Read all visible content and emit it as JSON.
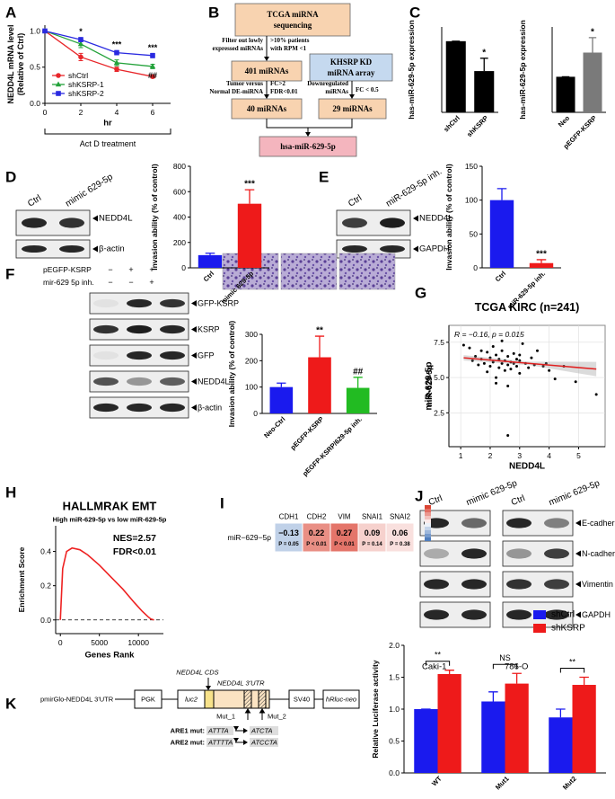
{
  "panel_labels": [
    "A",
    "B",
    "C",
    "D",
    "E",
    "F",
    "G",
    "H",
    "I",
    "J",
    "K"
  ],
  "diagram_b": {
    "nodes": [
      [
        "TCGA miRNA",
        "sequencing"
      ],
      [
        "401 miRNAs"
      ],
      [
        "40 miRNAs"
      ],
      [
        "KHSRP KD",
        "miRNA array"
      ],
      [
        "29 miRNAs"
      ],
      [
        "hsa-miR-629-5p"
      ]
    ],
    "edge_labels": [
      [
        "Filter out lowly",
        "expressed miRNAs"
      ],
      [
        ">10% patients",
        "with RPM <1"
      ],
      [
        "Tumor versus",
        "Normal DE-miRNA"
      ],
      [
        "FC>2",
        "FDR<0.01"
      ],
      [
        "Downregulated",
        "miRNAs"
      ],
      [
        "FC < 0.5"
      ]
    ]
  },
  "blots": {
    "D": {
      "lanes": [
        "Ctrl",
        "mimic 629-5p"
      ],
      "bands": [
        "NEDD4L",
        "β-actin"
      ]
    },
    "E": {
      "lanes": [
        "Ctrl",
        "miR-629-5p inh."
      ],
      "bands": [
        "NEDD4L",
        "GAPDH"
      ]
    },
    "F": {
      "rows": [
        {
          "label": "pEGFP-KSRP",
          "marks": [
            "−",
            "+",
            "+"
          ]
        },
        {
          "label": "mir-629 5p inh.",
          "marks": [
            "−",
            "−",
            "+"
          ]
        }
      ],
      "bands": [
        "GFP-KSRP",
        "KSRP",
        "GFP",
        "NEDD4L",
        "β-actin"
      ]
    },
    "J": {
      "lanes": [
        "Ctrl",
        "mimic 629-5p",
        "Ctrl",
        "mimic 629-5p"
      ],
      "bands": [
        "E-cadherin",
        "N-cadherin",
        "Vimentin",
        "GAPDH"
      ],
      "cell_lines": [
        "Caki-1",
        "786-O"
      ]
    }
  },
  "construct_k": {
    "vector": "pmirGlo-NEDD4L 3'UTR",
    "boxes": [
      "PGK",
      "luc2",
      "SV40",
      "hRluc-neo"
    ],
    "cds": "NEDD4L CDS",
    "utr": "NEDD4L 3'UTR",
    "muts": [
      "Mut_1",
      "Mut_2"
    ],
    "are": [
      {
        "label": "ARE1 mut:",
        "from": "ATTTA",
        "to": "ATCTA"
      },
      {
        "label": "ARE2 mut:",
        "from": "ATTTTA",
        "to": "ATCCTA"
      }
    ]
  },
  "chart_data": [
    {
      "type": "line",
      "ylabel": [
        "NEDD4L mRNA level",
        "(Relative of Ctrl)"
      ],
      "xlabel": "hr",
      "bracket_label": "Act D treatment",
      "x": [
        0,
        2,
        4,
        6
      ],
      "xlim": [
        0,
        7
      ],
      "xticks": [
        0,
        2,
        4,
        6
      ],
      "ylim": [
        0,
        1.08
      ],
      "yticks": [
        {
          "value": 0,
          "label": "0.0"
        },
        0.5,
        {
          "value": 1,
          "label": "1.0"
        }
      ],
      "series": [
        {
          "name": "shCtrl",
          "color": "#e8262a",
          "marker": "circle",
          "values": [
            1,
            0.64,
            0.47,
            0.37
          ],
          "errors": [
            0.02,
            0.05,
            0.03,
            0.02
          ]
        },
        {
          "name": "shKSRP-1",
          "color": "#23a23a",
          "marker": "triangle",
          "values": [
            1,
            0.82,
            0.56,
            0.51
          ],
          "errors": [
            0.02,
            0.05,
            0.04,
            0.03
          ]
        },
        {
          "name": "shKSRP-2",
          "color": "#2a2ae0",
          "marker": "square",
          "values": [
            1,
            0.88,
            0.7,
            0.66
          ],
          "errors": [
            0.02,
            0.03,
            0.03,
            0.03
          ]
        }
      ],
      "legend": "lower left",
      "annotations": [
        {
          "series": 2,
          "index": 1,
          "text": "*",
          "color": "#2a2ae0"
        },
        {
          "series": 2,
          "index": 2,
          "text": "***",
          "color": "#2a2ae0"
        },
        {
          "series": 2,
          "index": 3,
          "text": "***",
          "color": "#2a2ae0"
        },
        {
          "series": 1,
          "index": 3,
          "text": "##",
          "color": "#23a23a"
        }
      ]
    },
    {
      "type": "bar",
      "ylabel": "has-miR-629-5p expression",
      "categories": [
        "shCtrl",
        "shKSRP"
      ],
      "values": [
        1,
        0.58
      ],
      "errors": [
        0,
        0.18
      ],
      "colors": [
        "#000000",
        "#000000"
      ],
      "ylim": [
        0,
        1.2
      ],
      "stars": [
        null,
        "*"
      ]
    },
    {
      "type": "bar",
      "ylabel": "has-miR-629-5p expression",
      "categories": [
        "Neo",
        "pEGFP-KSRP"
      ],
      "values": [
        1,
        1.68
      ],
      "errors": [
        0,
        0.42
      ],
      "colors": [
        "#000000",
        "#7a7a7a"
      ],
      "ylim": [
        0,
        2.4
      ],
      "stars": [
        null,
        "*"
      ]
    },
    {
      "type": "bar",
      "ylabel": "Invasion ability (% of control)",
      "categories": [
        "Ctrl",
        "mimic 629-5p"
      ],
      "values": [
        100,
        505
      ],
      "errors": [
        15,
        110
      ],
      "colors": [
        "#1a1aee",
        "#ee1a1a"
      ],
      "ylim": [
        0,
        800
      ],
      "yticks": [
        0,
        200,
        400,
        600,
        800
      ],
      "stars": [
        null,
        "***"
      ]
    },
    {
      "type": "bar",
      "ylabel": "Invasion ability (% of control)",
      "categories": [
        "Ctrl",
        "miR-629-5p inh."
      ],
      "values": [
        100,
        7
      ],
      "errors": [
        17,
        5
      ],
      "colors": [
        "#1a1aee",
        "#ee1a1a"
      ],
      "ylim": [
        0,
        150
      ],
      "yticks": [
        0,
        50,
        100,
        150
      ],
      "stars": [
        null,
        "***"
      ]
    },
    {
      "type": "bar",
      "ylabel": "Invasion ability (% of control)",
      "categories": [
        "Neo-Ctrl",
        "pEGFP-KSRP",
        "pEGFP-KSRP/629-5p inh."
      ],
      "values": [
        100,
        213,
        97
      ],
      "errors": [
        15,
        80,
        40
      ],
      "colors": [
        "#1a1aee",
        "#ee1a1a",
        "#22bb22"
      ],
      "ylim": [
        0,
        300
      ],
      "yticks": [
        0,
        100,
        200,
        300
      ],
      "stars": [
        null,
        "**",
        "##"
      ]
    },
    {
      "type": "scatter",
      "title": "TCGA KIRC (n=241)",
      "stat": "R = −0.16, p = 0.015",
      "xlabel": "NEDD4L",
      "ylabel": "miR-629-5p",
      "x": [
        1.1,
        1.3,
        1.4,
        1.5,
        1.6,
        1.7,
        1.8,
        1.9,
        1.9,
        2.0,
        2.0,
        2.1,
        2.1,
        2.2,
        2.2,
        2.3,
        2.3,
        2.4,
        2.4,
        2.5,
        2.5,
        2.6,
        2.6,
        2.6,
        2.7,
        2.7,
        2.8,
        2.8,
        2.9,
        2.9,
        3.0,
        3.0,
        3.1,
        3.2,
        3.3,
        3.4,
        3.5,
        3.6,
        3.8,
        3.9,
        4.0,
        4.2,
        4.5,
        4.9,
        5.6,
        2.6,
        2.2,
        2.4,
        1.7,
        3.0
      ],
      "values": [
        7.3,
        7.1,
        6.2,
        6.5,
        5.9,
        6.3,
        6.0,
        6.8,
        5.4,
        6.4,
        5.8,
        7.2,
        6.1,
        6.6,
        5.0,
        6.3,
        5.7,
        6.9,
        6.0,
        6.2,
        5.5,
        6.5,
        5.9,
        4.4,
        6.1,
        5.6,
        6.7,
        6.0,
        5.8,
        6.3,
        6.2,
        5.3,
        7.4,
        6.0,
        5.7,
        6.4,
        5.9,
        6.9,
        5.8,
        6.0,
        5.5,
        4.9,
        5.8,
        4.7,
        3.8,
        0.9,
        4.6,
        7.6,
        6.9,
        6.6
      ],
      "color": "#000000",
      "xlim": [
        0.6,
        5.9
      ],
      "xticks": [
        1,
        2,
        3,
        4,
        5
      ],
      "ylim": [
        0.1,
        8.7
      ],
      "yticks": [
        2.5,
        {
          "value": 5,
          "label": "5.0"
        },
        7.5
      ],
      "grid": true,
      "trend": {
        "x": [
          1.1,
          5.6
        ],
        "y": [
          6.4,
          5.6
        ],
        "color": "#e02020"
      }
    },
    {
      "type": "line",
      "title": "HALLMRAK EMT",
      "subtitle": "High miR-629-5p vs low miR-629-5p",
      "notes": [
        "NES=2.57",
        "FDR<0.01"
      ],
      "xlabel": "Genes Rank",
      "ylabel": "Enrichment Score",
      "markers": false,
      "zero_line": true,
      "x": [
        0,
        300,
        800,
        1500,
        2500,
        3500,
        5000,
        6500,
        8000,
        9500,
        10500,
        11200,
        11600,
        12000
      ],
      "xlim": [
        -600,
        13200
      ],
      "xticks": [
        0,
        5000,
        10000
      ],
      "ylim": [
        -0.08,
        0.55
      ],
      "yticks": [
        {
          "value": 0,
          "label": "0.0"
        },
        0.2,
        0.4
      ],
      "series": [
        {
          "color": "#ee2222",
          "values": [
            0,
            0.3,
            0.4,
            0.42,
            0.41,
            0.38,
            0.32,
            0.25,
            0.18,
            0.1,
            0.05,
            0.02,
            0.005,
            0
          ]
        }
      ]
    },
    {
      "type": "heatmap",
      "rows": [
        "miR−629−5p"
      ],
      "columns": [
        "CDH1",
        "CDH2",
        "VIM",
        "SNAI1",
        "SNAI2"
      ],
      "values": [
        [
          -0.13,
          0.22,
          0.27,
          0.09,
          0.06
        ]
      ],
      "value_labels": [
        [
          "−0.13",
          "0.22",
          "0.27",
          "0.09",
          "0.06"
        ]
      ],
      "p_labels": [
        [
          "P = 0.05",
          "P < 0.01",
          "P < 0.01",
          "P = 0.14",
          "P = 0.38"
        ]
      ]
    },
    {
      "type": "bar",
      "ylabel": "Relative Luciferase activity",
      "categories": [
        "WT",
        "Mut1",
        "Mut2"
      ],
      "series": [
        {
          "name": "shCtrl",
          "color": "#1a1aee",
          "values": [
            1.0,
            1.12,
            0.87
          ],
          "errors": [
            0,
            0.15,
            0.13
          ]
        },
        {
          "name": "shKSRP",
          "color": "#ee1a1a",
          "values": [
            1.55,
            1.4,
            1.38
          ],
          "errors": [
            0.06,
            0.16,
            0.12
          ]
        }
      ],
      "ylim": [
        0,
        2.0
      ],
      "yticks": [
        {
          "value": 0,
          "label": "0.0"
        },
        0.5,
        {
          "value": 1,
          "label": "1.0"
        },
        1.5,
        {
          "value": 2,
          "label": "2.0"
        }
      ],
      "brackets": [
        "**",
        "NS",
        "**"
      ],
      "legend": "upper right"
    }
  ]
}
